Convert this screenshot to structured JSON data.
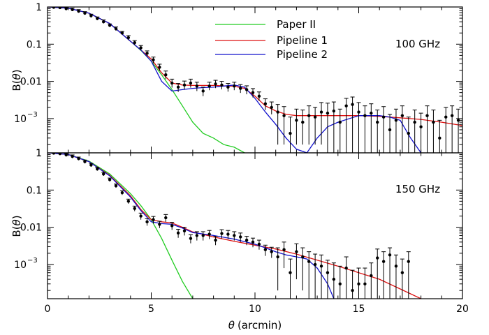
{
  "chart_data": {
    "type": "line",
    "xlabel_symbol": "θ",
    "xlabel_unit": "(arcmin)",
    "ylabel_prefix": "B(",
    "ylabel_symbol": "θ",
    "ylabel_suffix": ")",
    "xlim": [
      0,
      20
    ],
    "x_ticks": [
      "0",
      "5",
      "10",
      "15",
      "20"
    ],
    "y_scale": "log",
    "ylim": [
      0.00012,
      1
    ],
    "y_ticks": [
      "1",
      "0.1",
      "0.01"
    ],
    "y_tick_exp_base": "10",
    "y_tick_exp": "−3",
    "legend": [
      {
        "name": "Paper II",
        "color": "#22cc22"
      },
      {
        "name": "Pipeline 1",
        "color": "#dd1111"
      },
      {
        "name": "Pipeline 2",
        "color": "#1111cc"
      }
    ],
    "legend_placement": "top-center",
    "panels": [
      {
        "label": "100 GHz",
        "series": [
          {
            "name": "Paper II",
            "color": "#22cc22",
            "x": [
              0,
              1,
              2,
              3,
              4,
              4.5,
              5,
              5.5,
              6,
              6.5,
              7,
              7.5,
              8,
              8.5,
              9,
              9.5
            ],
            "y": [
              1,
              0.93,
              0.68,
              0.36,
              0.12,
              0.068,
              0.035,
              0.015,
              0.006,
              0.0022,
              0.0008,
              0.0004,
              0.0003,
              0.0002,
              0.00017,
              0.00012
            ]
          },
          {
            "name": "Pipeline 1",
            "color": "#dd1111",
            "x": [
              0,
              1,
              2,
              3,
              4,
              4.5,
              5,
              5.5,
              6,
              6.5,
              7,
              7.5,
              8,
              8.5,
              9,
              9.5,
              10,
              10.5,
              11,
              11.5,
              12,
              13,
              14,
              15,
              16,
              17,
              18,
              19,
              20
            ],
            "y": [
              1,
              0.93,
              0.68,
              0.36,
              0.12,
              0.07,
              0.04,
              0.017,
              0.009,
              0.008,
              0.0078,
              0.0078,
              0.0078,
              0.0076,
              0.0074,
              0.0065,
              0.004,
              0.0022,
              0.0016,
              0.0013,
              0.0012,
              0.0012,
              0.0012,
              0.0012,
              0.00115,
              0.00105,
              0.00095,
              0.0008,
              0.00065
            ]
          },
          {
            "name": "Pipeline 2",
            "color": "#1111cc",
            "x": [
              0,
              1,
              2,
              3,
              4,
              4.5,
              5,
              5.5,
              6,
              6.5,
              7,
              7.5,
              8,
              8.5,
              9,
              9.5,
              10,
              10.5,
              11,
              11.5,
              12,
              12.5,
              13,
              13.5,
              14,
              15,
              16,
              16.5,
              17,
              17.5,
              18
            ],
            "y": [
              1,
              0.93,
              0.68,
              0.36,
              0.12,
              0.07,
              0.035,
              0.01,
              0.0055,
              0.006,
              0.0065,
              0.0068,
              0.007,
              0.0075,
              0.008,
              0.007,
              0.0035,
              0.0015,
              0.0007,
              0.0003,
              0.00015,
              0.00012,
              0.0003,
              0.0006,
              0.0008,
              0.0012,
              0.0012,
              0.0011,
              0.0009,
              0.0003,
              0.00012
            ]
          },
          {
            "name": "data",
            "color": "#000000",
            "x": [
              0.3,
              0.6,
              0.9,
              1.2,
              1.5,
              1.8,
              2.1,
              2.4,
              2.7,
              3.0,
              3.3,
              3.6,
              3.9,
              4.2,
              4.5,
              4.8,
              5.1,
              5.4,
              5.7,
              6.0,
              6.3,
              6.6,
              6.9,
              7.2,
              7.5,
              7.8,
              8.1,
              8.4,
              8.7,
              9.0,
              9.3,
              9.6,
              9.9,
              10.2,
              10.5,
              10.8,
              11.1,
              11.4,
              11.7,
              12.0,
              12.3,
              12.6,
              12.9,
              13.2,
              13.5,
              13.8,
              14.1,
              14.4,
              14.7,
              15.0,
              15.3,
              15.6,
              15.9,
              16.2,
              16.5,
              16.8,
              17.1,
              17.4,
              17.7,
              18.0,
              18.3,
              18.6,
              18.9,
              19.2,
              19.5,
              19.8
            ],
            "y": [
              0.98,
              0.96,
              0.9,
              0.85,
              0.77,
              0.68,
              0.58,
              0.49,
              0.4,
              0.32,
              0.26,
              0.2,
              0.15,
              0.11,
              0.08,
              0.057,
              0.038,
              0.024,
              0.015,
              0.009,
              0.007,
              0.008,
              0.009,
              0.0075,
              0.0055,
              0.0075,
              0.0085,
              0.008,
              0.007,
              0.0075,
              0.0065,
              0.006,
              0.005,
              0.004,
              0.0025,
              0.002,
              0.0015,
              0.0012,
              0.0004,
              0.0009,
              0.0008,
              0.0012,
              0.0011,
              0.0015,
              0.0014,
              0.0016,
              0.0008,
              0.0022,
              0.0024,
              0.0015,
              0.0012,
              0.0014,
              0.0008,
              0.0011,
              0.0005,
              0.0009,
              0.0012,
              0.0004,
              0.0008,
              0.0006,
              0.0012,
              0.0008,
              0.0003,
              0.0011,
              0.0012,
              0.0009
            ],
            "err_lo": [
              0.9,
              0.88,
              0.82,
              0.78,
              0.7,
              0.62,
              0.52,
              0.44,
              0.36,
              0.29,
              0.23,
              0.18,
              0.13,
              0.095,
              0.068,
              0.048,
              0.031,
              0.019,
              0.0115,
              0.0068,
              0.0052,
              0.006,
              0.0068,
              0.0055,
              0.004,
              0.0058,
              0.0066,
              0.0061,
              0.0053,
              0.0058,
              0.0049,
              0.0045,
              0.0037,
              0.003,
              0.0017,
              0.0013,
              0.0002,
              0.0002,
              0.00012,
              0.0002,
              0.0002,
              0.0002,
              0.0002,
              0.0002,
              0.00012,
              0.00012,
              0.00012,
              0.00012,
              0.00012,
              0.00012,
              0.00012,
              0.00012,
              0.00012,
              0.00012,
              0.00012,
              0.00012,
              0.00012,
              0.00012,
              0.00012,
              0.00012,
              0.00012,
              0.00012,
              0.00012,
              0.00012,
              0.00012,
              0.00012
            ],
            "err_hi": [
              1,
              1,
              0.98,
              0.93,
              0.85,
              0.75,
              0.64,
              0.54,
              0.45,
              0.35,
              0.29,
              0.22,
              0.17,
              0.125,
              0.092,
              0.066,
              0.045,
              0.029,
              0.019,
              0.0115,
              0.0088,
              0.0102,
              0.0115,
              0.0095,
              0.007,
              0.0095,
              0.0107,
              0.01,
              0.0088,
              0.0095,
              0.0082,
              0.0076,
              0.0064,
              0.0052,
              0.0034,
              0.0028,
              0.0024,
              0.0021,
              0.0011,
              0.0018,
              0.0017,
              0.0022,
              0.002,
              0.0027,
              0.0026,
              0.0028,
              0.0018,
              0.0035,
              0.0038,
              0.0027,
              0.0022,
              0.0025,
              0.0017,
              0.0021,
              0.0013,
              0.0018,
              0.0022,
              0.0011,
              0.0017,
              0.0014,
              0.0022,
              0.0017,
              0.0009,
              0.002,
              0.0022,
              0.0018
            ]
          }
        ]
      },
      {
        "label": "150 GHz",
        "series": [
          {
            "name": "Paper II",
            "color": "#22cc22",
            "x": [
              0,
              1,
              2,
              3,
              4,
              4.5,
              5,
              5.5,
              6,
              6.5,
              7
            ],
            "y": [
              1,
              0.9,
              0.6,
              0.27,
              0.08,
              0.038,
              0.016,
              0.005,
              0.0013,
              0.00035,
              0.00012
            ]
          },
          {
            "name": "Pipeline 1",
            "color": "#dd1111",
            "x": [
              0,
              1,
              2,
              3,
              4,
              4.5,
              5,
              5.5,
              6,
              6.5,
              7,
              8,
              9,
              10,
              11,
              12,
              13,
              14,
              15,
              16,
              17,
              18
            ],
            "y": [
              1,
              0.9,
              0.58,
              0.25,
              0.07,
              0.03,
              0.016,
              0.014,
              0.013,
              0.01,
              0.0075,
              0.0055,
              0.0042,
              0.0033,
              0.0026,
              0.0019,
              0.0013,
              0.0009,
              0.0006,
              0.0004,
              0.00022,
              0.00012
            ]
          },
          {
            "name": "Pipeline 2",
            "color": "#1111cc",
            "x": [
              0,
              1,
              2,
              3,
              4,
              4.5,
              5,
              5.5,
              6,
              6.5,
              7,
              8,
              9,
              10,
              10.5,
              11,
              11.5,
              12,
              12.5,
              13,
              13.5,
              13.8
            ],
            "y": [
              1,
              0.9,
              0.58,
              0.24,
              0.065,
              0.028,
              0.014,
              0.0125,
              0.012,
              0.0095,
              0.0072,
              0.006,
              0.0048,
              0.0035,
              0.0028,
              0.0022,
              0.0018,
              0.0016,
              0.0014,
              0.0008,
              0.0003,
              0.00012
            ]
          },
          {
            "name": "data",
            "color": "#000000",
            "x": [
              0.3,
              0.6,
              0.9,
              1.2,
              1.5,
              1.8,
              2.1,
              2.4,
              2.7,
              3.0,
              3.3,
              3.6,
              3.9,
              4.2,
              4.5,
              4.8,
              5.1,
              5.4,
              5.7,
              6.0,
              6.3,
              6.6,
              6.9,
              7.2,
              7.5,
              7.8,
              8.1,
              8.4,
              8.7,
              9.0,
              9.3,
              9.6,
              9.9,
              10.2,
              10.5,
              10.8,
              11.1,
              11.4,
              11.7,
              12.0,
              12.3,
              12.6,
              12.9,
              13.2,
              13.5,
              13.8,
              14.1,
              14.4,
              14.7,
              15.0,
              15.3,
              15.6,
              15.9,
              16.2,
              16.5,
              16.8,
              17.1,
              17.4
            ],
            "y": [
              0.98,
              0.95,
              0.88,
              0.8,
              0.7,
              0.58,
              0.47,
              0.37,
              0.27,
              0.19,
              0.13,
              0.085,
              0.05,
              0.032,
              0.02,
              0.014,
              0.016,
              0.012,
              0.018,
              0.011,
              0.007,
              0.008,
              0.005,
              0.006,
              0.006,
              0.0065,
              0.0045,
              0.0068,
              0.0065,
              0.006,
              0.0055,
              0.0045,
              0.004,
              0.0035,
              0.0025,
              0.0022,
              0.0016,
              0.0025,
              0.0006,
              0.0022,
              0.0016,
              0.0012,
              0.001,
              0.0009,
              0.0006,
              0.0004,
              0.0003,
              0.0008,
              0.0002,
              0.0003,
              0.0003,
              0.0005,
              0.0015,
              0.0012,
              0.0018,
              0.0009,
              0.0006,
              0.0012
            ],
            "err_lo": [
              0.9,
              0.87,
              0.8,
              0.72,
              0.63,
              0.52,
              0.42,
              0.33,
              0.24,
              0.17,
              0.115,
              0.074,
              0.043,
              0.027,
              0.016,
              0.011,
              0.0125,
              0.0095,
              0.014,
              0.0085,
              0.0052,
              0.006,
              0.0037,
              0.0044,
              0.0044,
              0.0048,
              0.0033,
              0.005,
              0.0048,
              0.0044,
              0.004,
              0.0033,
              0.0029,
              0.0025,
              0.0017,
              0.0015,
              0.0002,
              0.0008,
              0.00012,
              0.0004,
              0.0002,
              0.00012,
              0.00012,
              0.00012,
              0.00012,
              0.00012,
              0.00012,
              0.00012,
              0.00012,
              0.00012,
              0.00012,
              0.00012,
              0.00012,
              0.00012,
              0.00012,
              0.00012,
              0.00012,
              0.00012
            ],
            "err_hi": [
              1,
              1,
              0.96,
              0.88,
              0.77,
              0.64,
              0.52,
              0.41,
              0.3,
              0.21,
              0.145,
              0.096,
              0.057,
              0.037,
              0.024,
              0.017,
              0.0195,
              0.0145,
              0.022,
              0.0135,
              0.0088,
              0.01,
              0.0063,
              0.0076,
              0.0076,
              0.0082,
              0.0057,
              0.0086,
              0.0082,
              0.0076,
              0.007,
              0.0057,
              0.0051,
              0.0045,
              0.0033,
              0.0029,
              0.0028,
              0.004,
              0.0014,
              0.0036,
              0.0028,
              0.0022,
              0.0019,
              0.0018,
              0.0013,
              0.0011,
              0.0009,
              0.0016,
              0.0007,
              0.0008,
              0.0008,
              0.0011,
              0.0026,
              0.0022,
              0.0028,
              0.0018,
              0.0014,
              0.0022
            ]
          }
        ]
      }
    ]
  }
}
